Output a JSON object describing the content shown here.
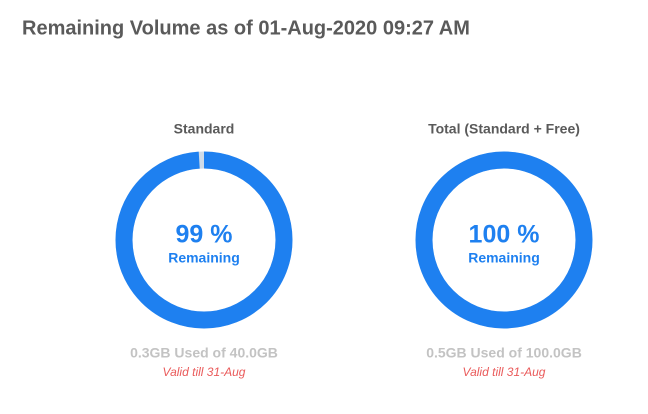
{
  "title": "Remaining Volume as of 01-Aug-2020 09:27 AM",
  "chart_data": [
    {
      "type": "donut",
      "title": "Standard",
      "value": 99,
      "value_label": "99 %",
      "center_label": "Remaining",
      "caption": "0.3GB Used of 40.0GB",
      "note": "Valid till 31-Aug",
      "ylim": [
        0,
        100
      ],
      "color": "#1e80f0",
      "track_color": "#cfdbe8"
    },
    {
      "type": "donut",
      "title": "Total (Standard + Free)",
      "value": 100,
      "value_label": "100 %",
      "center_label": "Remaining",
      "caption": "0.5GB Used of 100.0GB",
      "note": "Valid till 31-Aug",
      "ylim": [
        0,
        100
      ],
      "color": "#1e80f0",
      "track_color": "#cfdbe8"
    }
  ]
}
